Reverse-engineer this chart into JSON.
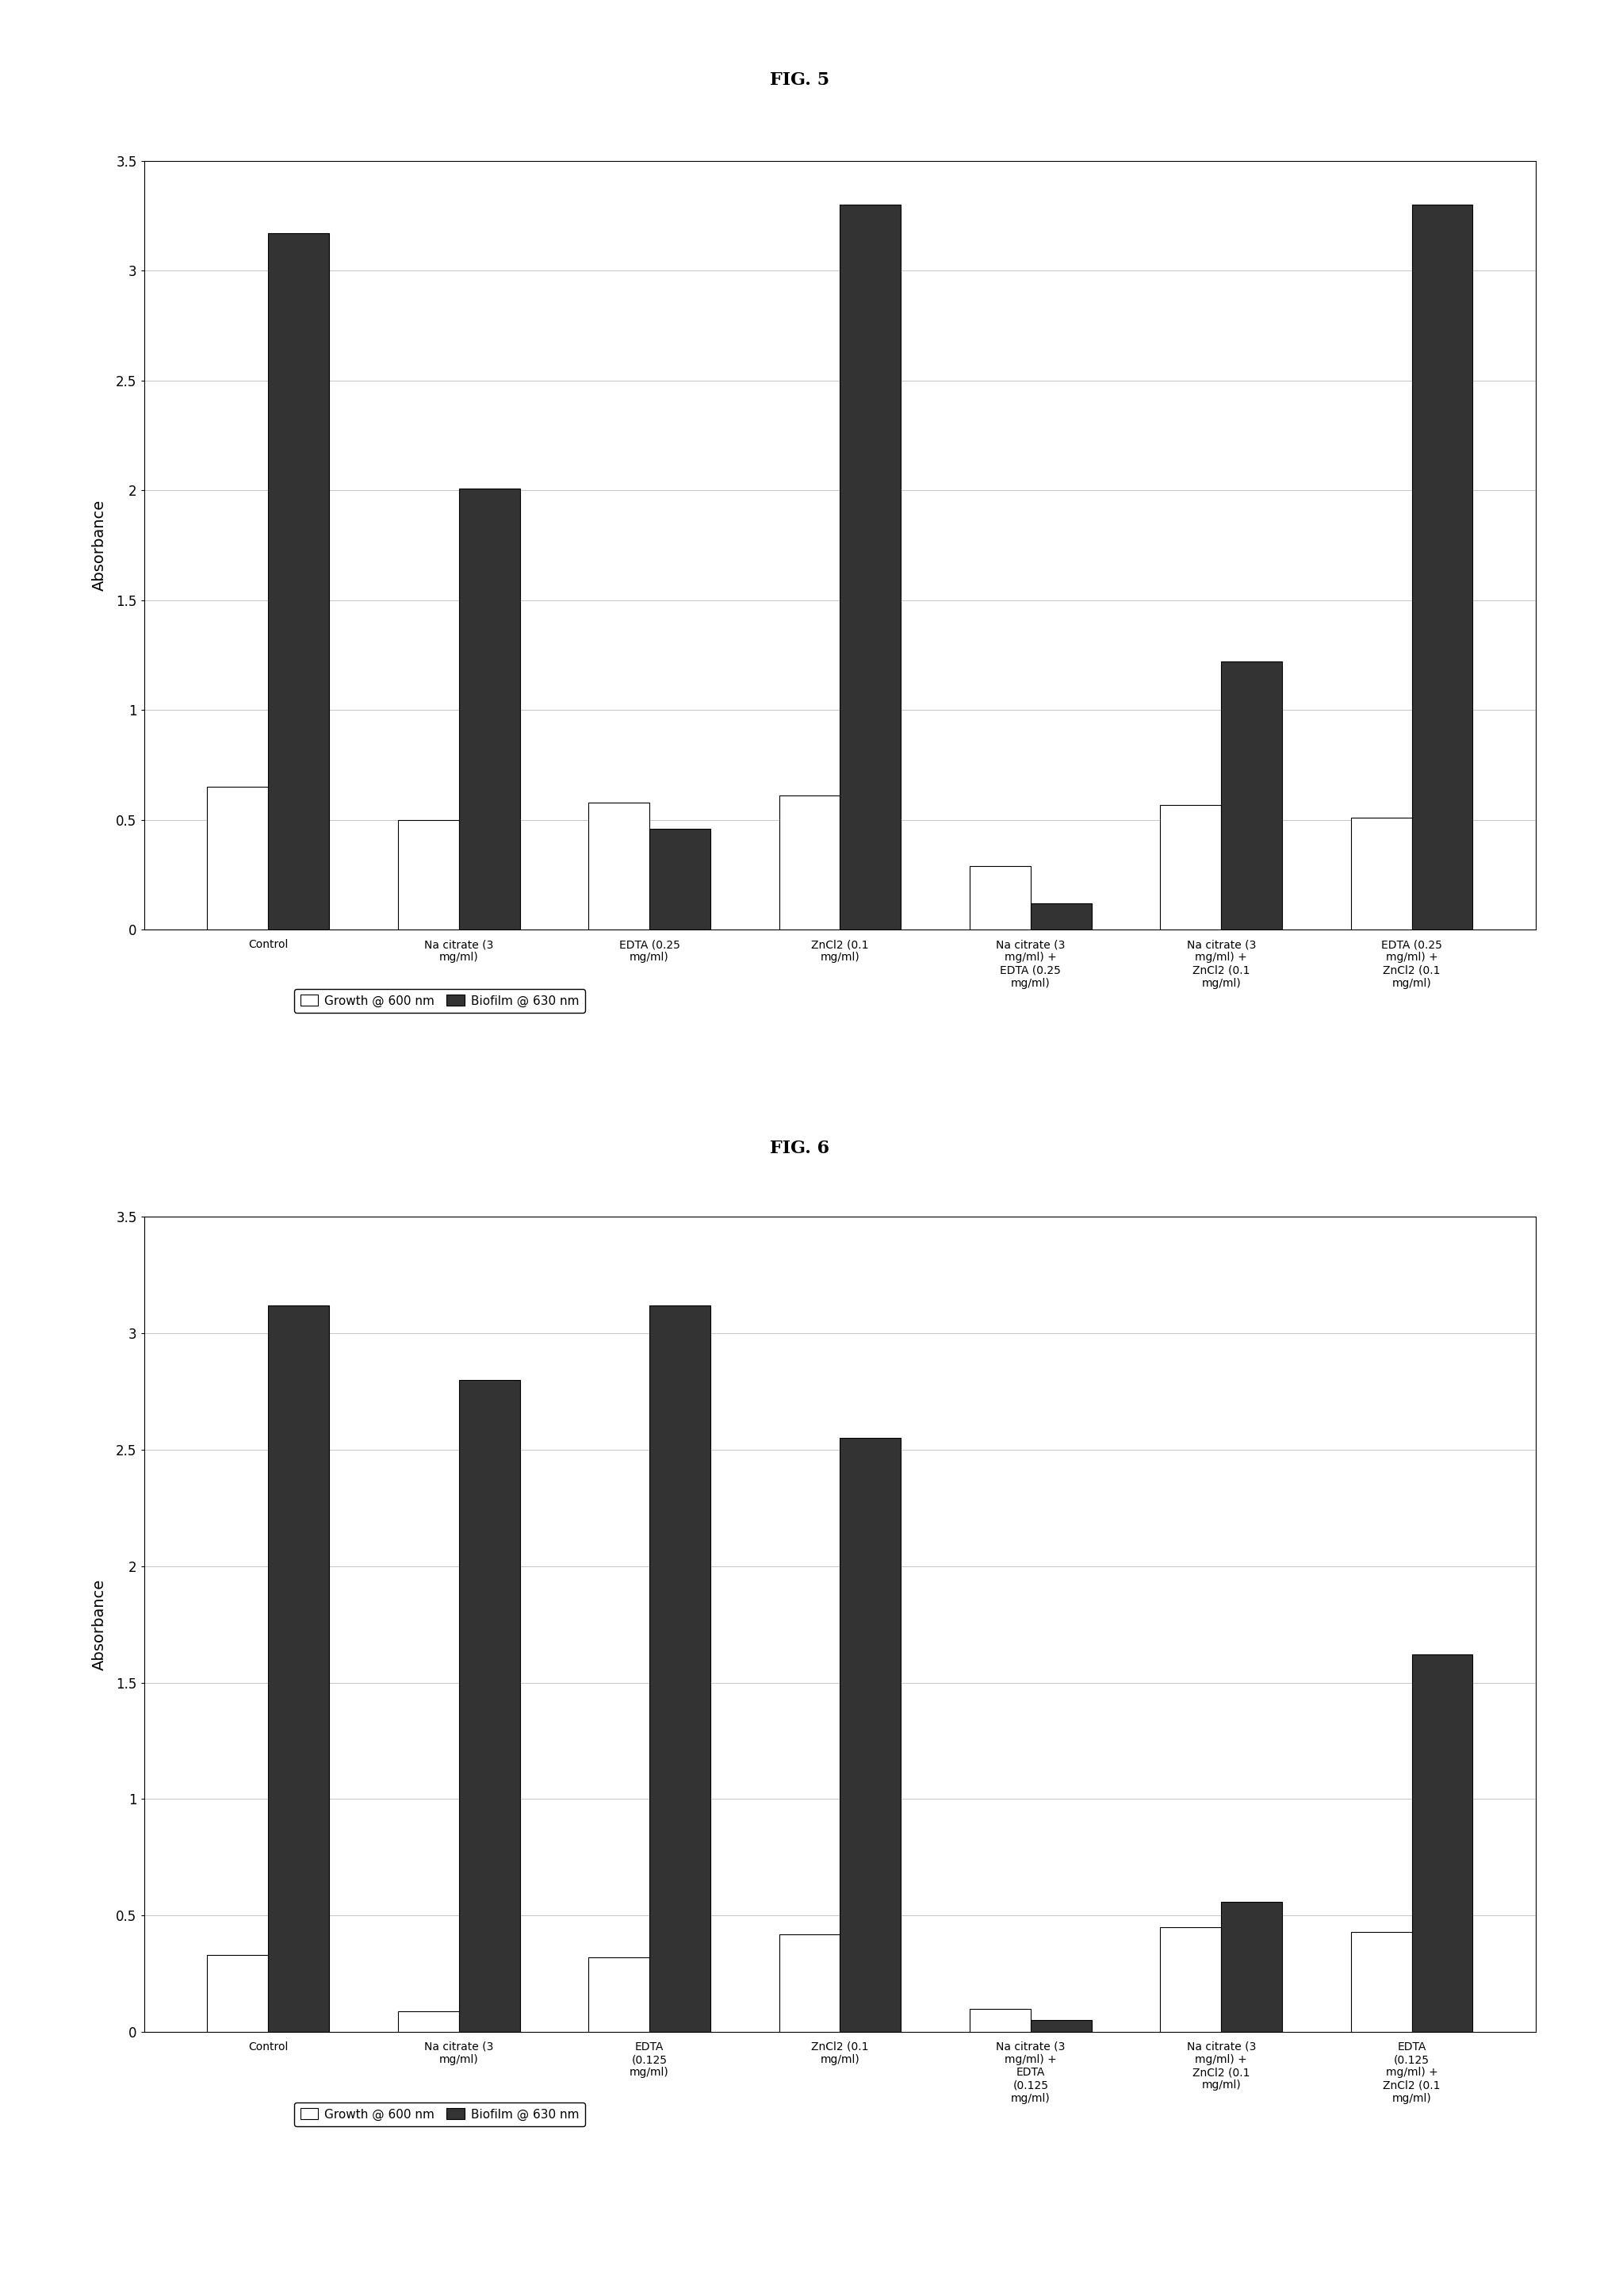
{
  "fig5": {
    "title": "FIG. 5",
    "categories": [
      "Control",
      "Na citrate (3\nmg/ml)",
      "EDTA (0.25\nmg/ml)",
      "ZnCl2 (0.1\nmg/ml)",
      "Na citrate (3\nmg/ml) +\nEDTA (0.25\nmg/ml)",
      "Na citrate (3\nmg/ml) +\nZnCl2 (0.1\nmg/ml)",
      "EDTA (0.25\nmg/ml) +\nZnCl2 (0.1\nmg/ml)"
    ],
    "growth_600": [
      0.65,
      0.5,
      0.58,
      0.61,
      0.29,
      0.57,
      0.51
    ],
    "biofilm_630": [
      3.17,
      2.01,
      0.46,
      3.3,
      0.12,
      1.22,
      3.3
    ],
    "ylabel": "Absorbance",
    "ylim": [
      0,
      3.5
    ],
    "yticks": [
      0,
      0.5,
      1.0,
      1.5,
      2.0,
      2.5,
      3.0,
      3.5
    ]
  },
  "fig6": {
    "title": "FIG. 6",
    "categories": [
      "Control",
      "Na citrate (3\nmg/ml)",
      "EDTA\n(0.125\nmg/ml)",
      "ZnCl2 (0.1\nmg/ml)",
      "Na citrate (3\nmg/ml) +\nEDTA\n(0.125\nmg/ml)",
      "Na citrate (3\nmg/ml) +\nZnCl2 (0.1\nmg/ml)",
      "EDTA\n(0.125\nmg/ml) +\nZnCl2 (0.1\nmg/ml)"
    ],
    "growth_600": [
      0.33,
      0.09,
      0.32,
      0.42,
      0.1,
      0.45,
      0.43
    ],
    "biofilm_630": [
      3.12,
      2.8,
      3.12,
      2.55,
      0.05,
      0.56,
      1.62
    ],
    "ylabel": "Absorbance",
    "ylim": [
      0,
      3.5
    ],
    "yticks": [
      0,
      0.5,
      1.0,
      1.5,
      2.0,
      2.5,
      3.0,
      3.5
    ]
  },
  "legend_growth": "Growth @ 600 nm",
  "legend_biofilm": "Biofilm @ 630 nm",
  "bar_color_growth": "#ffffff",
  "bar_color_biofilm": "#333333",
  "bar_edge_color": "#000000",
  "background_color": "#ffffff",
  "grid_color": "#bbbbbb"
}
